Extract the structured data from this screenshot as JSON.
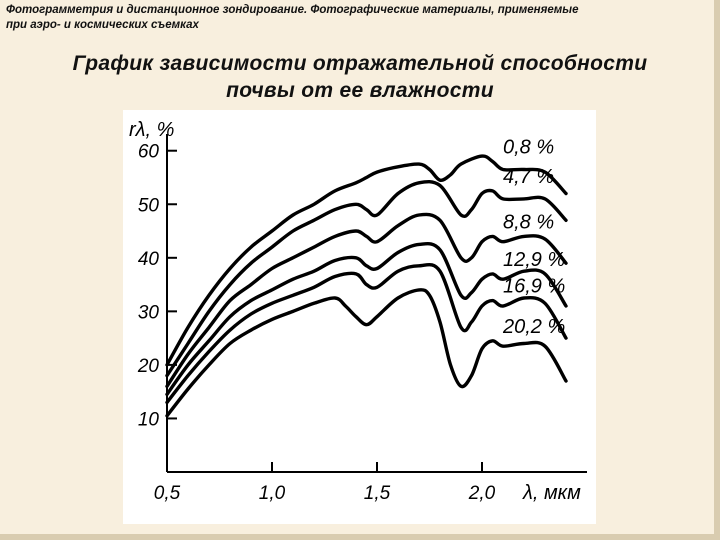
{
  "header": {
    "line1": "Фотограмметрия и дистанционное зондирование. Фотографические материалы, применяемые",
    "line2": "при аэро- и космических съемках"
  },
  "slide": {
    "title_line1": "График зависимости отражательной способности",
    "title_line2": "почвы от ее влажности"
  },
  "chart_data": {
    "type": "line",
    "title": "",
    "xlabel": "λ, мкм",
    "ylabel": "rλ, %",
    "xlim": [
      0.5,
      2.5
    ],
    "ylim": [
      0,
      62
    ],
    "x_ticks": [
      "0,5",
      "1,0",
      "1,5",
      "2,0"
    ],
    "x_tick_values": [
      0.5,
      1.0,
      1.5,
      2.0
    ],
    "y_ticks": [
      "10",
      "20",
      "30",
      "40",
      "50",
      "60"
    ],
    "y_tick_values": [
      10,
      20,
      30,
      40,
      50,
      60
    ],
    "grid": false,
    "line_color": "#000000",
    "series": [
      {
        "name": "0,8 %",
        "points": [
          [
            0.5,
            20
          ],
          [
            0.6,
            27
          ],
          [
            0.7,
            33
          ],
          [
            0.8,
            38
          ],
          [
            0.9,
            42
          ],
          [
            1.0,
            45
          ],
          [
            1.1,
            48
          ],
          [
            1.2,
            50
          ],
          [
            1.3,
            52.5
          ],
          [
            1.4,
            54
          ],
          [
            1.45,
            55
          ],
          [
            1.5,
            56
          ],
          [
            1.6,
            57
          ],
          [
            1.7,
            57.5
          ],
          [
            1.75,
            56.5
          ],
          [
            1.8,
            54.5
          ],
          [
            1.85,
            55.5
          ],
          [
            1.9,
            57.5
          ],
          [
            2.0,
            59
          ],
          [
            2.05,
            58
          ],
          [
            2.1,
            56.5
          ],
          [
            2.2,
            56.5
          ],
          [
            2.3,
            56
          ],
          [
            2.4,
            52
          ]
        ]
      },
      {
        "name": "4,7 %",
        "points": [
          [
            0.5,
            18
          ],
          [
            0.6,
            24
          ],
          [
            0.7,
            30
          ],
          [
            0.8,
            35
          ],
          [
            0.9,
            39
          ],
          [
            1.0,
            42
          ],
          [
            1.1,
            45
          ],
          [
            1.2,
            47
          ],
          [
            1.3,
            49
          ],
          [
            1.4,
            50
          ],
          [
            1.45,
            49
          ],
          [
            1.5,
            48
          ],
          [
            1.6,
            52
          ],
          [
            1.7,
            54
          ],
          [
            1.8,
            53.5
          ],
          [
            1.9,
            48
          ],
          [
            1.95,
            49
          ],
          [
            2.0,
            52
          ],
          [
            2.05,
            52.5
          ],
          [
            2.1,
            51
          ],
          [
            2.2,
            51
          ],
          [
            2.3,
            51
          ],
          [
            2.4,
            47
          ]
        ]
      },
      {
        "name": "8,8 %",
        "points": [
          [
            0.5,
            16
          ],
          [
            0.6,
            22
          ],
          [
            0.7,
            27
          ],
          [
            0.8,
            32
          ],
          [
            0.9,
            35
          ],
          [
            1.0,
            38
          ],
          [
            1.1,
            40
          ],
          [
            1.2,
            42
          ],
          [
            1.3,
            44
          ],
          [
            1.4,
            45
          ],
          [
            1.45,
            44
          ],
          [
            1.5,
            43
          ],
          [
            1.6,
            46
          ],
          [
            1.7,
            48
          ],
          [
            1.8,
            47
          ],
          [
            1.9,
            40
          ],
          [
            1.95,
            40
          ],
          [
            2.0,
            43
          ],
          [
            2.05,
            44
          ],
          [
            2.1,
            43
          ],
          [
            2.2,
            44
          ],
          [
            2.3,
            43.5
          ],
          [
            2.4,
            39
          ]
        ]
      },
      {
        "name": "12,9 %",
        "points": [
          [
            0.5,
            14.5
          ],
          [
            0.6,
            20
          ],
          [
            0.7,
            24.5
          ],
          [
            0.8,
            29
          ],
          [
            0.9,
            32
          ],
          [
            1.0,
            34
          ],
          [
            1.1,
            36
          ],
          [
            1.2,
            37.5
          ],
          [
            1.3,
            39.5
          ],
          [
            1.4,
            40
          ],
          [
            1.45,
            38.5
          ],
          [
            1.5,
            38
          ],
          [
            1.6,
            41
          ],
          [
            1.7,
            42.5
          ],
          [
            1.8,
            41.5
          ],
          [
            1.9,
            33
          ],
          [
            1.95,
            33.5
          ],
          [
            2.0,
            36
          ],
          [
            2.05,
            37
          ],
          [
            2.1,
            36
          ],
          [
            2.2,
            37.5
          ],
          [
            2.3,
            37
          ],
          [
            2.4,
            31
          ]
        ]
      },
      {
        "name": "16,9 %",
        "points": [
          [
            0.5,
            13
          ],
          [
            0.6,
            18
          ],
          [
            0.7,
            22.5
          ],
          [
            0.8,
            26.5
          ],
          [
            0.9,
            29.5
          ],
          [
            1.0,
            31.5
          ],
          [
            1.1,
            33
          ],
          [
            1.2,
            34.5
          ],
          [
            1.3,
            36.5
          ],
          [
            1.4,
            37
          ],
          [
            1.45,
            35
          ],
          [
            1.5,
            34.5
          ],
          [
            1.6,
            37.5
          ],
          [
            1.7,
            38.5
          ],
          [
            1.8,
            37.5
          ],
          [
            1.9,
            27
          ],
          [
            1.95,
            28
          ],
          [
            2.0,
            31
          ],
          [
            2.05,
            32
          ],
          [
            2.1,
            31
          ],
          [
            2.2,
            32.5
          ],
          [
            2.3,
            31.5
          ],
          [
            2.4,
            25
          ]
        ]
      },
      {
        "name": "20,2 %",
        "points": [
          [
            0.5,
            10.5
          ],
          [
            0.6,
            15.5
          ],
          [
            0.7,
            20
          ],
          [
            0.8,
            24
          ],
          [
            0.9,
            26.5
          ],
          [
            1.0,
            28.5
          ],
          [
            1.1,
            30
          ],
          [
            1.2,
            31.5
          ],
          [
            1.3,
            32.5
          ],
          [
            1.35,
            31
          ],
          [
            1.4,
            29
          ],
          [
            1.45,
            27.5
          ],
          [
            1.5,
            29
          ],
          [
            1.6,
            32.5
          ],
          [
            1.7,
            34
          ],
          [
            1.75,
            33
          ],
          [
            1.8,
            28
          ],
          [
            1.85,
            20
          ],
          [
            1.9,
            16
          ],
          [
            1.95,
            18
          ],
          [
            2.0,
            23
          ],
          [
            2.05,
            24.5
          ],
          [
            2.1,
            23.5
          ],
          [
            2.2,
            24
          ],
          [
            2.3,
            23.5
          ],
          [
            2.4,
            17
          ]
        ]
      }
    ]
  }
}
